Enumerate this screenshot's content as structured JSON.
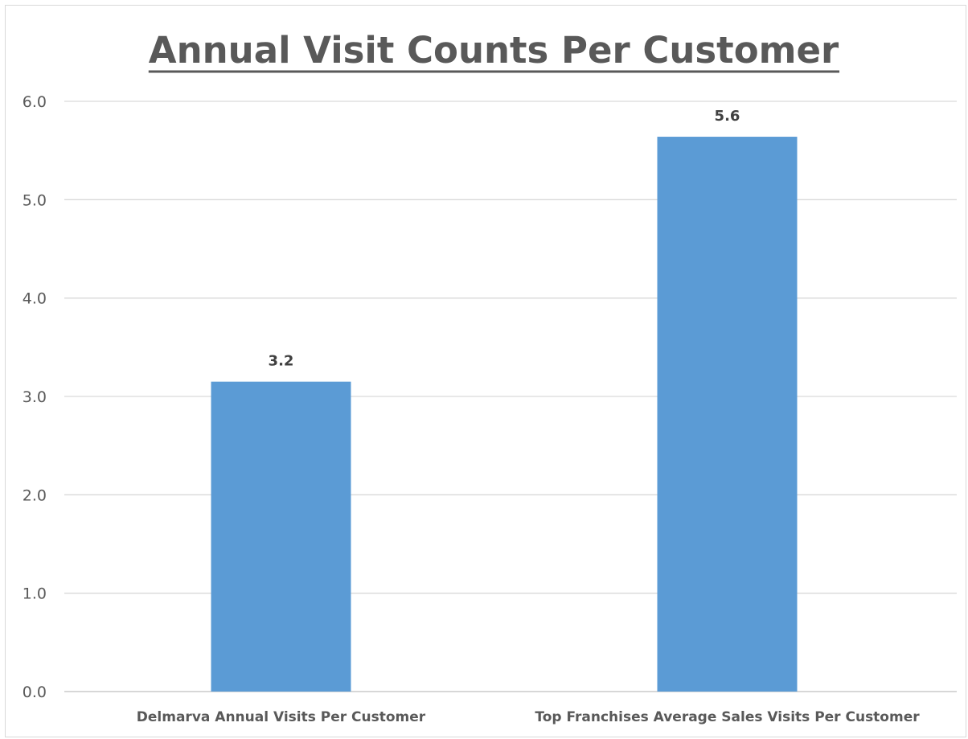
{
  "chart_data": {
    "type": "bar",
    "title": "Annual Visit Counts Per Customer",
    "categories": [
      "Delmarva Annual Visits Per Customer",
      "Top Franchises Average Sales Visits Per Customer"
    ],
    "values": [
      3.15,
      5.64
    ],
    "data_labels": [
      "3.2",
      "5.6"
    ],
    "xlabel": "",
    "ylabel": "",
    "ylim": [
      0,
      6
    ],
    "yticks": [
      "0.0",
      "1.0",
      "2.0",
      "3.0",
      "4.0",
      "5.0",
      "6.0"
    ],
    "grid": true,
    "legend": "none",
    "colors": {
      "bar": "#5b9bd5",
      "grid": "#d9d9d9",
      "axis": "#bfbfbf",
      "text": "#595959",
      "data_label": "#404040"
    }
  }
}
